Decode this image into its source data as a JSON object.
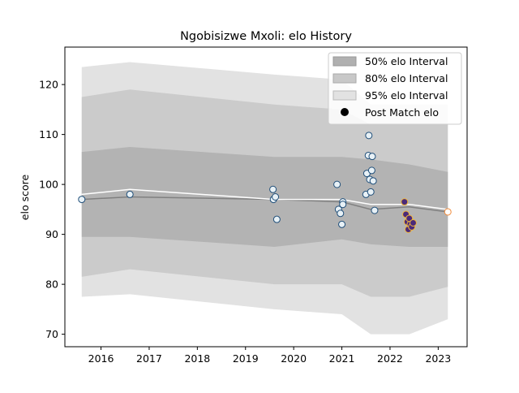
{
  "chart_data": {
    "type": "scatter",
    "title": "Ngobisizwe Mxoli: elo History",
    "ylabel": "elo score",
    "xlabel": "",
    "xlim": [
      2015.25,
      2023.6
    ],
    "ylim": [
      67.5,
      127.5
    ],
    "x_ticks": [
      2016,
      2017,
      2018,
      2019,
      2020,
      2021,
      2022,
      2023
    ],
    "x_tick_labels": [
      "2016",
      "2017",
      "2018",
      "2019",
      "2020",
      "2021",
      "2022",
      "2023"
    ],
    "y_ticks": [
      70,
      80,
      90,
      100,
      110,
      120
    ],
    "y_tick_labels": [
      "70",
      "80",
      "90",
      "100",
      "110",
      "120"
    ],
    "legend_position": "top-right",
    "legend": [
      {
        "label": "50% elo Interval",
        "color": "#b0b0b0"
      },
      {
        "label": "80% elo Interval",
        "color": "#c8c8c8"
      },
      {
        "label": "95% elo Interval",
        "color": "#e2e2e2"
      },
      {
        "label": "Post Match elo",
        "color": "#000000"
      }
    ],
    "band_x": [
      2015.6,
      2016.6,
      2019.6,
      2021.0,
      2021.6,
      2022.4,
      2023.2
    ],
    "band_95": {
      "lower": [
        77.5,
        78.0,
        75.0,
        74.0,
        70.0,
        70.0,
        73.0
      ],
      "upper": [
        123.5,
        124.5,
        122.0,
        121.0,
        116.0,
        116.0,
        116.0
      ]
    },
    "band_80": {
      "lower": [
        81.5,
        83.0,
        80.0,
        80.0,
        77.5,
        77.5,
        79.5
      ],
      "upper": [
        117.5,
        119.0,
        116.0,
        115.0,
        112.0,
        112.0,
        112.0
      ]
    },
    "band_50": {
      "lower": [
        89.5,
        89.5,
        87.5,
        89.0,
        88.0,
        87.5,
        87.5
      ],
      "upper": [
        106.5,
        107.5,
        105.5,
        105.5,
        105.0,
        104.0,
        102.5
      ]
    },
    "line_mean": {
      "x": [
        2015.6,
        2016.6,
        2019.6,
        2021.0,
        2021.6,
        2022.4,
        2023.2
      ],
      "y": [
        98.0,
        99.0,
        97.0,
        97.0,
        96.0,
        96.0,
        95.0
      ],
      "color": "#ffffff"
    },
    "line_median": {
      "x": [
        2015.6,
        2016.6,
        2019.6,
        2021.0,
        2021.6,
        2022.4,
        2023.2
      ],
      "y": [
        97.0,
        97.5,
        97.0,
        96.5,
        95.0,
        95.5,
        94.5
      ],
      "color": "#808080"
    },
    "points": [
      {
        "x": 2015.6,
        "y": 97.0,
        "fill": "#e8f1f6",
        "edge": "#1f4e79"
      },
      {
        "x": 2016.6,
        "y": 98.0,
        "fill": "#e8f1f6",
        "edge": "#1f4e79"
      },
      {
        "x": 2019.57,
        "y": 99.0,
        "fill": "#e8f1f6",
        "edge": "#1f4e79"
      },
      {
        "x": 2019.58,
        "y": 97.0,
        "fill": "#e8f1f6",
        "edge": "#1f4e79"
      },
      {
        "x": 2019.62,
        "y": 97.5,
        "fill": "#e8f1f6",
        "edge": "#1f4e79"
      },
      {
        "x": 2019.65,
        "y": 93.0,
        "fill": "#e8f1f6",
        "edge": "#1f4e79"
      },
      {
        "x": 2020.9,
        "y": 100.0,
        "fill": "#e8f1f6",
        "edge": "#1f4e79"
      },
      {
        "x": 2020.93,
        "y": 95.0,
        "fill": "#e8f1f6",
        "edge": "#1f4e79"
      },
      {
        "x": 2020.97,
        "y": 94.2,
        "fill": "#e8f1f6",
        "edge": "#1f4e79"
      },
      {
        "x": 2021.0,
        "y": 92.0,
        "fill": "#e8f1f6",
        "edge": "#1f4e79"
      },
      {
        "x": 2021.02,
        "y": 96.5,
        "fill": "#e8f1f6",
        "edge": "#1f4e79"
      },
      {
        "x": 2021.02,
        "y": 96.0,
        "fill": "#e8f1f6",
        "edge": "#1f4e79"
      },
      {
        "x": 2021.5,
        "y": 98.0,
        "fill": "#e8f1f6",
        "edge": "#1f4e79"
      },
      {
        "x": 2021.52,
        "y": 102.2,
        "fill": "#e8f1f6",
        "edge": "#1f4e79"
      },
      {
        "x": 2021.55,
        "y": 105.8,
        "fill": "#e8f1f6",
        "edge": "#1f4e79"
      },
      {
        "x": 2021.56,
        "y": 109.8,
        "fill": "#e8f1f6",
        "edge": "#1f4e79"
      },
      {
        "x": 2021.58,
        "y": 101.0,
        "fill": "#e8f1f6",
        "edge": "#1f4e79"
      },
      {
        "x": 2021.6,
        "y": 98.5,
        "fill": "#e8f1f6",
        "edge": "#1f4e79"
      },
      {
        "x": 2021.62,
        "y": 102.8,
        "fill": "#e8f1f6",
        "edge": "#1f4e79"
      },
      {
        "x": 2021.63,
        "y": 105.6,
        "fill": "#e8f1f6",
        "edge": "#1f4e79"
      },
      {
        "x": 2021.65,
        "y": 100.7,
        "fill": "#e8f1f6",
        "edge": "#1f4e79"
      },
      {
        "x": 2021.68,
        "y": 94.8,
        "fill": "#e8f1f6",
        "edge": "#1f4e79"
      },
      {
        "x": 2022.3,
        "y": 96.5,
        "fill": "#4b2a7a",
        "edge": "#f0b43a"
      },
      {
        "x": 2022.33,
        "y": 94.0,
        "fill": "#4b2a7a",
        "edge": "#f0b43a"
      },
      {
        "x": 2022.36,
        "y": 92.5,
        "fill": "#4b2a7a",
        "edge": "#f0b43a"
      },
      {
        "x": 2022.38,
        "y": 91.0,
        "fill": "#4b2a7a",
        "edge": "#f0b43a"
      },
      {
        "x": 2022.4,
        "y": 93.2,
        "fill": "#4b2a7a",
        "edge": "#f0b43a"
      },
      {
        "x": 2022.42,
        "y": 92.0,
        "fill": "#4b2a7a",
        "edge": "#f0b43a"
      },
      {
        "x": 2022.45,
        "y": 91.5,
        "fill": "#4b2a7a",
        "edge": "#f0b43a"
      },
      {
        "x": 2022.48,
        "y": 92.3,
        "fill": "#4b2a7a",
        "edge": "#f0b43a"
      },
      {
        "x": 2023.2,
        "y": 94.5,
        "fill": "#ffffff",
        "edge": "#f08a3a"
      }
    ]
  }
}
